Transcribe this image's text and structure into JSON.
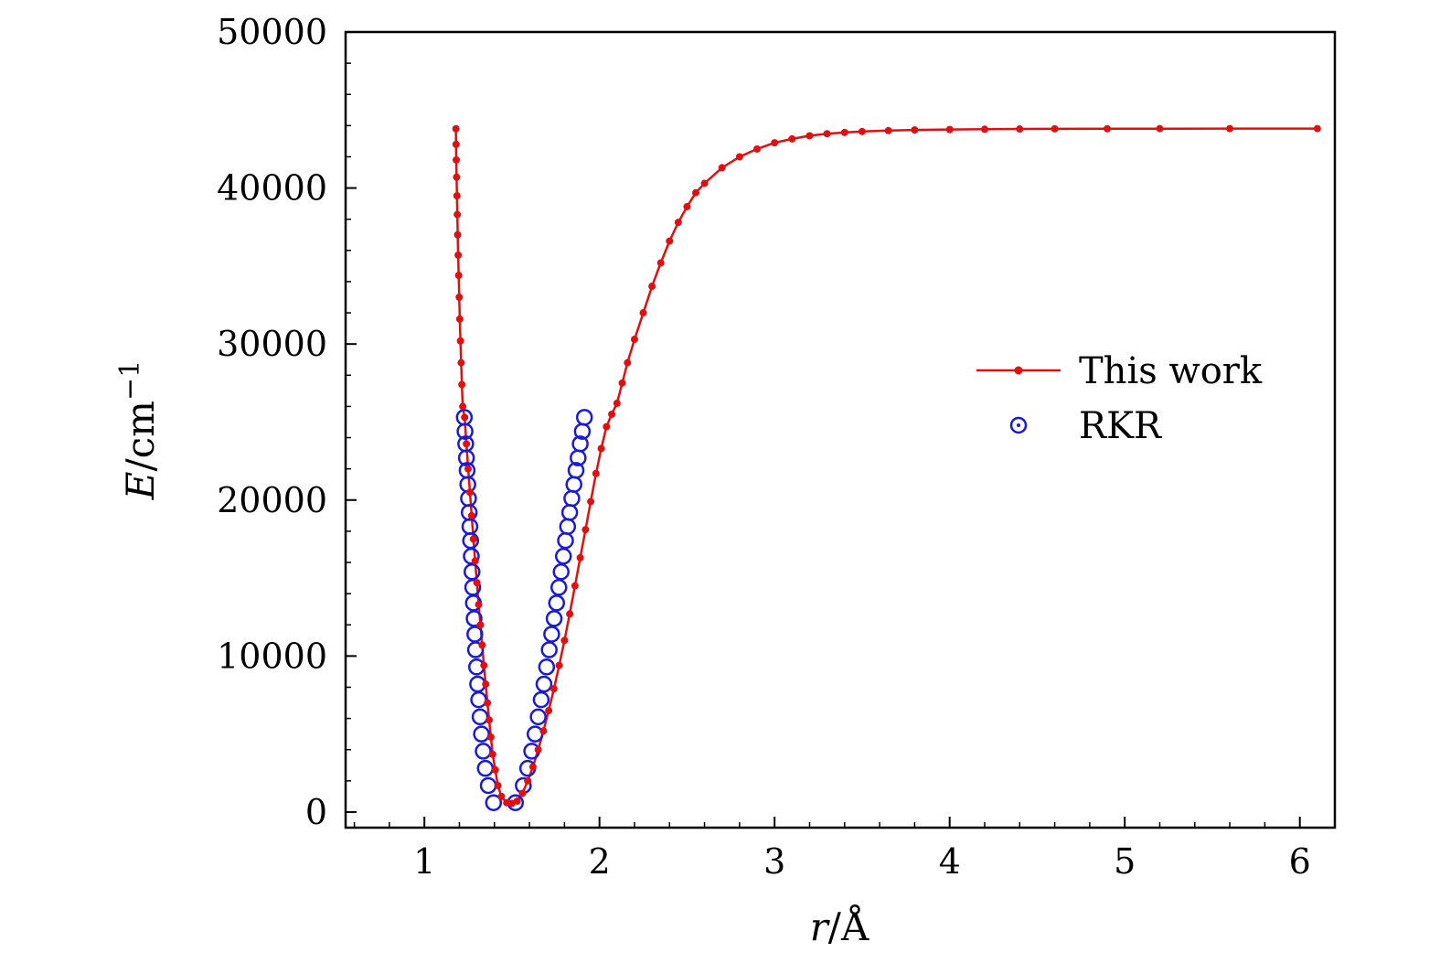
{
  "chart_data": {
    "type": "line",
    "title": "",
    "xlabel": {
      "var": "r",
      "unit": "/Å"
    },
    "ylabel": {
      "var": "E",
      "unit": "/cm",
      "sup": "−1"
    },
    "xlim": [
      0.55,
      6.2
    ],
    "ylim": [
      -1000,
      50000
    ],
    "x_ticks": [
      1,
      2,
      3,
      4,
      5,
      6
    ],
    "y_ticks": [
      0,
      10000,
      20000,
      30000,
      40000,
      50000
    ],
    "grid": false,
    "legend": {
      "placement": "right-middle"
    },
    "colors": {
      "this_work": "#e01010",
      "rkr": "#1a1adb"
    },
    "series": [
      {
        "name": "This work",
        "style": "line-markers",
        "points": [
          [
            1.18,
            43800
          ],
          [
            1.181,
            42800
          ],
          [
            1.182,
            41800
          ],
          [
            1.184,
            40700
          ],
          [
            1.186,
            39500
          ],
          [
            1.188,
            38300
          ],
          [
            1.19,
            37000
          ],
          [
            1.193,
            35700
          ],
          [
            1.196,
            34400
          ],
          [
            1.199,
            33000
          ],
          [
            1.202,
            31600
          ],
          [
            1.206,
            30200
          ],
          [
            1.21,
            28800
          ],
          [
            1.214,
            27400
          ],
          [
            1.219,
            26000
          ],
          [
            1.23,
            25300
          ],
          [
            1.24,
            23600
          ],
          [
            1.25,
            22000
          ],
          [
            1.26,
            20500
          ],
          [
            1.27,
            19000
          ],
          [
            1.28,
            17500
          ],
          [
            1.29,
            16100
          ],
          [
            1.3,
            14700
          ],
          [
            1.31,
            13300
          ],
          [
            1.32,
            12000
          ],
          [
            1.33,
            10700
          ],
          [
            1.34,
            9400
          ],
          [
            1.35,
            8200
          ],
          [
            1.36,
            7000
          ],
          [
            1.37,
            5900
          ],
          [
            1.38,
            4800
          ],
          [
            1.39,
            3700
          ],
          [
            1.405,
            2700
          ],
          [
            1.42,
            1700
          ],
          [
            1.44,
            1000
          ],
          [
            1.47,
            600
          ],
          [
            1.5,
            550
          ],
          [
            1.53,
            700
          ],
          [
            1.56,
            1200
          ],
          [
            1.59,
            2000
          ],
          [
            1.62,
            2900
          ],
          [
            1.65,
            4000
          ],
          [
            1.68,
            5200
          ],
          [
            1.71,
            6500
          ],
          [
            1.74,
            7900
          ],
          [
            1.77,
            9400
          ],
          [
            1.8,
            11000
          ],
          [
            1.83,
            12700
          ],
          [
            1.86,
            14500
          ],
          [
            1.89,
            16300
          ],
          [
            1.92,
            18100
          ],
          [
            1.95,
            19900
          ],
          [
            1.98,
            21700
          ],
          [
            2.01,
            23300
          ],
          [
            2.04,
            24700
          ],
          [
            2.07,
            25500
          ],
          [
            2.1,
            26200
          ],
          [
            2.13,
            27500
          ],
          [
            2.16,
            28800
          ],
          [
            2.2,
            30300
          ],
          [
            2.25,
            32000
          ],
          [
            2.3,
            33700
          ],
          [
            2.35,
            35200
          ],
          [
            2.4,
            36600
          ],
          [
            2.45,
            37800
          ],
          [
            2.5,
            38800
          ],
          [
            2.55,
            39700
          ],
          [
            2.6,
            40300
          ],
          [
            2.7,
            41300
          ],
          [
            2.8,
            42000
          ],
          [
            2.9,
            42500
          ],
          [
            3.0,
            42900
          ],
          [
            3.1,
            43150
          ],
          [
            3.2,
            43350
          ],
          [
            3.3,
            43480
          ],
          [
            3.4,
            43560
          ],
          [
            3.5,
            43620
          ],
          [
            3.65,
            43680
          ],
          [
            3.8,
            43720
          ],
          [
            4.0,
            43750
          ],
          [
            4.2,
            43770
          ],
          [
            4.4,
            43785
          ],
          [
            4.6,
            43795
          ],
          [
            4.9,
            43800
          ],
          [
            5.2,
            43805
          ],
          [
            5.6,
            43808
          ],
          [
            6.1,
            43810
          ]
        ]
      },
      {
        "name": "RKR",
        "style": "open-circles",
        "points": [
          [
            1.228,
            25300
          ],
          [
            1.232,
            24400
          ],
          [
            1.236,
            23600
          ],
          [
            1.24,
            22700
          ],
          [
            1.244,
            21900
          ],
          [
            1.248,
            21000
          ],
          [
            1.252,
            20100
          ],
          [
            1.256,
            19200
          ],
          [
            1.26,
            18300
          ],
          [
            1.264,
            17400
          ],
          [
            1.268,
            16400
          ],
          [
            1.272,
            15400
          ],
          [
            1.276,
            14400
          ],
          [
            1.28,
            13400
          ],
          [
            1.284,
            12400
          ],
          [
            1.288,
            11400
          ],
          [
            1.292,
            10400
          ],
          [
            1.298,
            9300
          ],
          [
            1.304,
            8200
          ],
          [
            1.31,
            7200
          ],
          [
            1.318,
            6100
          ],
          [
            1.326,
            5000
          ],
          [
            1.336,
            3900
          ],
          [
            1.348,
            2800
          ],
          [
            1.365,
            1700
          ],
          [
            1.395,
            600
          ],
          [
            1.52,
            600
          ],
          [
            1.565,
            1700
          ],
          [
            1.59,
            2800
          ],
          [
            1.613,
            3900
          ],
          [
            1.632,
            5000
          ],
          [
            1.65,
            6100
          ],
          [
            1.667,
            7200
          ],
          [
            1.683,
            8200
          ],
          [
            1.698,
            9300
          ],
          [
            1.713,
            10400
          ],
          [
            1.727,
            11400
          ],
          [
            1.741,
            12400
          ],
          [
            1.755,
            13400
          ],
          [
            1.768,
            14400
          ],
          [
            1.781,
            15400
          ],
          [
            1.794,
            16400
          ],
          [
            1.806,
            17400
          ],
          [
            1.818,
            18300
          ],
          [
            1.83,
            19200
          ],
          [
            1.842,
            20100
          ],
          [
            1.854,
            21000
          ],
          [
            1.866,
            21900
          ],
          [
            1.878,
            22700
          ],
          [
            1.89,
            23600
          ],
          [
            1.902,
            24400
          ],
          [
            1.914,
            25300
          ]
        ]
      }
    ]
  }
}
